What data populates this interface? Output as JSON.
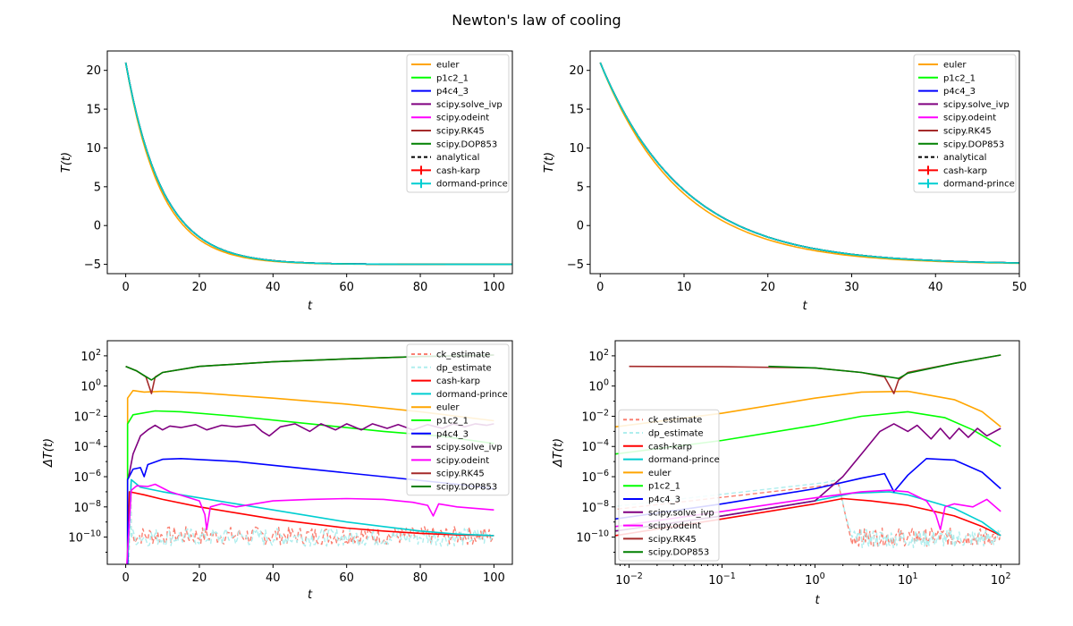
{
  "title": "Newton's law of cooling",
  "colors": {
    "euler": "#ffa500",
    "p1c2_1": "#00ff00",
    "p4c4_3": "#0000ff",
    "scipy_solve_ivp": "#800080",
    "scipy_odeint": "#ff00ff",
    "scipy_RK45": "#a52a2a",
    "scipy_DOP853": "#008000",
    "analytical": "#000000",
    "cash_karp": "#ff0000",
    "dormand_prince": "#00ced1",
    "ck_estimate": "#fa8072",
    "dp_estimate": "#afeeee"
  },
  "chart_data": [
    {
      "type": "line",
      "panel": "top-left",
      "xlabel": "t",
      "ylabel": "T(t)",
      "xlim": [
        -5,
        105
      ],
      "ylim": [
        -6.2,
        22.5
      ],
      "xticks": [
        0,
        20,
        40,
        60,
        80,
        100
      ],
      "yticks": [
        -5,
        0,
        5,
        10,
        15,
        20
      ],
      "legend_loc": "upper right",
      "legend": [
        "euler",
        "p1c2_1",
        "p4c4_3",
        "scipy.solve_ivp",
        "scipy.odeint",
        "scipy.RK45",
        "scipy.DOP853",
        "analytical",
        "cash-karp",
        "dormand-prince"
      ],
      "model": {
        "T0": 21,
        "Tenv": -5,
        "k": 0.1
      }
    },
    {
      "type": "line",
      "panel": "top-right",
      "xlabel": "t",
      "ylabel": "T(t)",
      "xlim": [
        -1.2,
        50
      ],
      "ylim": [
        -6.2,
        22.5
      ],
      "xticks": [
        0,
        10,
        20,
        30,
        40,
        50
      ],
      "yticks": [
        -5,
        0,
        5,
        10,
        15,
        20
      ],
      "legend_loc": "upper right",
      "legend": [
        "euler",
        "p1c2_1",
        "p4c4_3",
        "scipy.solve_ivp",
        "scipy.odeint",
        "scipy.RK45",
        "scipy.DOP853",
        "analytical",
        "cash-karp",
        "dormand-prince"
      ],
      "model": {
        "T0": 21,
        "Tenv": -5,
        "k": 0.1
      }
    },
    {
      "type": "line",
      "panel": "bottom-left",
      "xlabel": "t",
      "ylabel": "ΔT(t)",
      "xscale": "linear",
      "yscale": "log",
      "xlim": [
        -5,
        105
      ],
      "ylim_log10": [
        -11.8,
        3.0
      ],
      "xticks": [
        0,
        20,
        40,
        60,
        80,
        100
      ],
      "yticks": [
        "10^2",
        "10^0",
        "10^-2",
        "10^-4",
        "10^-6",
        "10^-8",
        "10^-10"
      ],
      "legend_loc": "upper right",
      "legend": [
        "ck_estimate",
        "dp_estimate",
        "cash-karp",
        "dormand-prince",
        "euler",
        "p1c2_1",
        "p4c4_3",
        "scipy.solve_ivp",
        "scipy.odeint",
        "scipy.RK45",
        "scipy.DOP853"
      ],
      "series_log10": {
        "scipy.DOP853": [
          [
            0,
            1.3
          ],
          [
            3,
            1.0
          ],
          [
            7,
            0.4
          ],
          [
            10,
            0.9
          ],
          [
            20,
            1.3
          ],
          [
            40,
            1.6
          ],
          [
            60,
            1.8
          ],
          [
            80,
            1.95
          ],
          [
            100,
            2.05
          ]
        ],
        "scipy.RK45": [
          [
            0,
            1.3
          ],
          [
            3,
            1.0
          ],
          [
            5.5,
            0.6
          ],
          [
            7,
            -0.5
          ],
          [
            8,
            0.6
          ],
          [
            10,
            0.9
          ],
          [
            20,
            1.3
          ],
          [
            40,
            1.6
          ],
          [
            60,
            1.8
          ],
          [
            80,
            1.95
          ],
          [
            100,
            2.05
          ]
        ],
        "euler": [
          [
            0.5,
            -0.8
          ],
          [
            2,
            -0.3
          ],
          [
            5,
            -0.4
          ],
          [
            10,
            -0.35
          ],
          [
            20,
            -0.45
          ],
          [
            40,
            -0.8
          ],
          [
            60,
            -1.2
          ],
          [
            80,
            -1.7
          ],
          [
            100,
            -2.3
          ]
        ],
        "p1c2_1": [
          [
            0.5,
            -2.5
          ],
          [
            2,
            -1.9
          ],
          [
            8,
            -1.65
          ],
          [
            15,
            -1.7
          ],
          [
            30,
            -2.0
          ],
          [
            50,
            -2.5
          ],
          [
            70,
            -3.0
          ],
          [
            85,
            -3.3
          ],
          [
            100,
            -3.8
          ]
        ],
        "p4c4_3": [
          [
            0.5,
            -6.2
          ],
          [
            2,
            -5.5
          ],
          [
            4,
            -5.4
          ],
          [
            5,
            -6.0
          ],
          [
            6,
            -5.2
          ],
          [
            10,
            -4.85
          ],
          [
            15,
            -4.8
          ],
          [
            30,
            -5.0
          ],
          [
            50,
            -5.5
          ],
          [
            70,
            -6.0
          ],
          [
            90,
            -6.5
          ],
          [
            100,
            -6.8
          ]
        ],
        "scipy.solve_ivp": [
          [
            0.8,
            -6.0
          ],
          [
            2,
            -4.5
          ],
          [
            4,
            -3.3
          ],
          [
            6,
            -2.9
          ],
          [
            8,
            -2.6
          ],
          [
            10,
            -2.9
          ],
          [
            12,
            -2.65
          ],
          [
            15,
            -2.75
          ],
          [
            19,
            -2.55
          ],
          [
            22,
            -2.9
          ],
          [
            26,
            -2.6
          ],
          [
            30,
            -2.7
          ],
          [
            35,
            -2.55
          ],
          [
            37,
            -3.0
          ],
          [
            39,
            -3.3
          ],
          [
            42,
            -2.7
          ],
          [
            46,
            -2.5
          ],
          [
            50,
            -3.0
          ],
          [
            53,
            -2.5
          ],
          [
            57,
            -2.9
          ],
          [
            60,
            -2.5
          ],
          [
            64,
            -2.9
          ],
          [
            67,
            -2.5
          ],
          [
            71,
            -2.8
          ],
          [
            74,
            -2.55
          ],
          [
            78,
            -2.9
          ],
          [
            82,
            -2.55
          ],
          [
            86,
            -2.8
          ],
          [
            89,
            -2.5
          ],
          [
            92,
            -2.7
          ],
          [
            95,
            -2.5
          ],
          [
            98,
            -2.6
          ],
          [
            100,
            -2.5
          ]
        ],
        "scipy.odeint": [
          [
            0.3,
            -11.8
          ],
          [
            1.5,
            -6.9
          ],
          [
            3,
            -6.6
          ],
          [
            6,
            -6.65
          ],
          [
            8,
            -6.5
          ],
          [
            12,
            -7.0
          ],
          [
            16,
            -7.3
          ],
          [
            20,
            -7.6
          ],
          [
            21.5,
            -8.5
          ],
          [
            22,
            -9.5
          ],
          [
            23,
            -8.0
          ],
          [
            26,
            -7.8
          ],
          [
            30,
            -8.0
          ],
          [
            40,
            -7.6
          ],
          [
            50,
            -7.5
          ],
          [
            60,
            -7.45
          ],
          [
            70,
            -7.5
          ],
          [
            78,
            -7.7
          ],
          [
            82,
            -7.9
          ],
          [
            83.5,
            -8.6
          ],
          [
            85,
            -7.8
          ],
          [
            90,
            -8.0
          ],
          [
            100,
            -8.2
          ]
        ],
        "cash-karp": [
          [
            1,
            -7.0
          ],
          [
            5,
            -7.2
          ],
          [
            10,
            -7.5
          ],
          [
            20,
            -8.0
          ],
          [
            30,
            -8.4
          ],
          [
            40,
            -8.8
          ],
          [
            50,
            -9.1
          ],
          [
            60,
            -9.4
          ],
          [
            70,
            -9.6
          ],
          [
            80,
            -9.75
          ],
          [
            90,
            -9.85
          ],
          [
            100,
            -9.9
          ]
        ],
        "dormand-prince": [
          [
            1.5,
            -6.2
          ],
          [
            4,
            -6.7
          ],
          [
            10,
            -7.0
          ],
          [
            20,
            -7.4
          ],
          [
            30,
            -7.8
          ],
          [
            40,
            -8.2
          ],
          [
            50,
            -8.6
          ],
          [
            60,
            -9.0
          ],
          [
            70,
            -9.3
          ],
          [
            80,
            -9.6
          ],
          [
            90,
            -9.8
          ],
          [
            100,
            -9.9
          ]
        ]
      },
      "noise_band": {
        "ck_estimate": {
          "center": -9.9,
          "amplitude": 0.6,
          "x": [
            1.5,
            100
          ]
        },
        "dp_estimate": {
          "center": -10.0,
          "amplitude": 0.6,
          "x": [
            1.5,
            100
          ]
        }
      }
    },
    {
      "type": "line",
      "panel": "bottom-right",
      "xlabel": "t",
      "ylabel": "ΔT(t)",
      "xscale": "log",
      "yscale": "log",
      "xlim_log10": [
        -2.15,
        2.2
      ],
      "ylim_log10": [
        -11.8,
        3.0
      ],
      "xticks": [
        "10^-2",
        "10^-1",
        "10^0",
        "10^1",
        "10^2"
      ],
      "yticks": [
        "10^2",
        "10^0",
        "10^-2",
        "10^-4",
        "10^-6",
        "10^-8",
        "10^-10"
      ],
      "legend_loc": "lower left",
      "legend": [
        "ck_estimate",
        "dp_estimate",
        "cash-karp",
        "dormand-prince",
        "euler",
        "p1c2_1",
        "p4c4_3",
        "scipy.solve_ivp",
        "scipy.odeint",
        "scipy.RK45",
        "scipy.DOP853"
      ],
      "series_log10xy": {
        "scipy.RK45": [
          [
            -2.0,
            1.3
          ],
          [
            -1.0,
            1.28
          ],
          [
            0.0,
            1.2
          ],
          [
            0.5,
            0.9
          ],
          [
            0.75,
            0.6
          ],
          [
            0.85,
            -0.5
          ],
          [
            0.9,
            0.4
          ],
          [
            1.0,
            0.9
          ],
          [
            1.5,
            1.5
          ],
          [
            2.0,
            2.05
          ]
        ],
        "scipy.DOP853": [
          [
            -0.5,
            1.3
          ],
          [
            0.0,
            1.2
          ],
          [
            0.5,
            0.9
          ],
          [
            0.9,
            0.5
          ],
          [
            1.0,
            0.85
          ],
          [
            1.5,
            1.5
          ],
          [
            2.0,
            2.05
          ]
        ],
        "euler": [
          [
            -2.15,
            -2.7
          ],
          [
            -1.0,
            -1.8
          ],
          [
            0.0,
            -0.8
          ],
          [
            0.5,
            -0.4
          ],
          [
            1.0,
            -0.35
          ],
          [
            1.5,
            -0.9
          ],
          [
            1.8,
            -1.7
          ],
          [
            2.0,
            -2.7
          ]
        ],
        "p1c2_1": [
          [
            -2.15,
            -4.5
          ],
          [
            -1.0,
            -3.6
          ],
          [
            0.0,
            -2.6
          ],
          [
            0.5,
            -2.0
          ],
          [
            1.0,
            -1.7
          ],
          [
            1.4,
            -2.1
          ],
          [
            1.7,
            -2.9
          ],
          [
            2.0,
            -4.0
          ]
        ],
        "p4c4_3": [
          [
            -2.15,
            -8.8
          ],
          [
            -1.0,
            -7.8
          ],
          [
            0.0,
            -6.8
          ],
          [
            0.5,
            -6.1
          ],
          [
            0.75,
            -5.8
          ],
          [
            0.85,
            -7.0
          ],
          [
            1.0,
            -5.9
          ],
          [
            1.2,
            -4.8
          ],
          [
            1.5,
            -4.9
          ],
          [
            1.8,
            -5.7
          ],
          [
            2.0,
            -6.8
          ]
        ],
        "scipy.solve_ivp": [
          [
            -2.15,
            -9.6
          ],
          [
            -1.0,
            -8.6
          ],
          [
            0.0,
            -7.6
          ],
          [
            0.3,
            -6.0
          ],
          [
            0.5,
            -4.5
          ],
          [
            0.7,
            -3.0
          ],
          [
            0.85,
            -2.5
          ],
          [
            1.0,
            -3.0
          ],
          [
            1.1,
            -2.6
          ],
          [
            1.25,
            -3.5
          ],
          [
            1.35,
            -2.8
          ],
          [
            1.45,
            -3.5
          ],
          [
            1.55,
            -2.8
          ],
          [
            1.65,
            -3.4
          ],
          [
            1.75,
            -2.8
          ],
          [
            1.85,
            -3.3
          ],
          [
            2.0,
            -2.8
          ]
        ],
        "scipy.odeint": [
          [
            -2.15,
            -9.3
          ],
          [
            -1.0,
            -8.3
          ],
          [
            0.0,
            -7.4
          ],
          [
            0.5,
            -7.0
          ],
          [
            0.8,
            -6.9
          ],
          [
            1.0,
            -7.0
          ],
          [
            1.2,
            -7.6
          ],
          [
            1.3,
            -8.5
          ],
          [
            1.35,
            -9.5
          ],
          [
            1.4,
            -8.0
          ],
          [
            1.5,
            -7.8
          ],
          [
            1.7,
            -8.0
          ],
          [
            1.85,
            -7.5
          ],
          [
            2.0,
            -8.3
          ]
        ],
        "cash-karp": [
          [
            -2.15,
            -9.9
          ],
          [
            -1.0,
            -8.8
          ],
          [
            0.0,
            -7.8
          ],
          [
            0.3,
            -7.45
          ],
          [
            0.6,
            -7.6
          ],
          [
            1.0,
            -7.9
          ],
          [
            1.5,
            -8.6
          ],
          [
            1.8,
            -9.3
          ],
          [
            2.0,
            -9.9
          ]
        ],
        "dormand-prince": [
          [
            -2.15,
            -9.6
          ],
          [
            -1.0,
            -8.6
          ],
          [
            0.0,
            -7.6
          ],
          [
            0.4,
            -7.1
          ],
          [
            0.8,
            -7.0
          ],
          [
            1.0,
            -7.2
          ],
          [
            1.5,
            -8.1
          ],
          [
            1.8,
            -9.0
          ],
          [
            2.0,
            -9.9
          ]
        ]
      },
      "noise_band": {
        "ck_estimate": {
          "center": -10.0,
          "amplitude": 0.6,
          "x_log10": [
            0.4,
            2.0
          ],
          "rise_from": [
            -1.0,
            -7.2
          ]
        },
        "dp_estimate": {
          "center": -10.1,
          "amplitude": 0.6,
          "x_log10": [
            0.4,
            2.0
          ],
          "rise_from": [
            -1.0,
            -7.0
          ]
        }
      }
    }
  ]
}
